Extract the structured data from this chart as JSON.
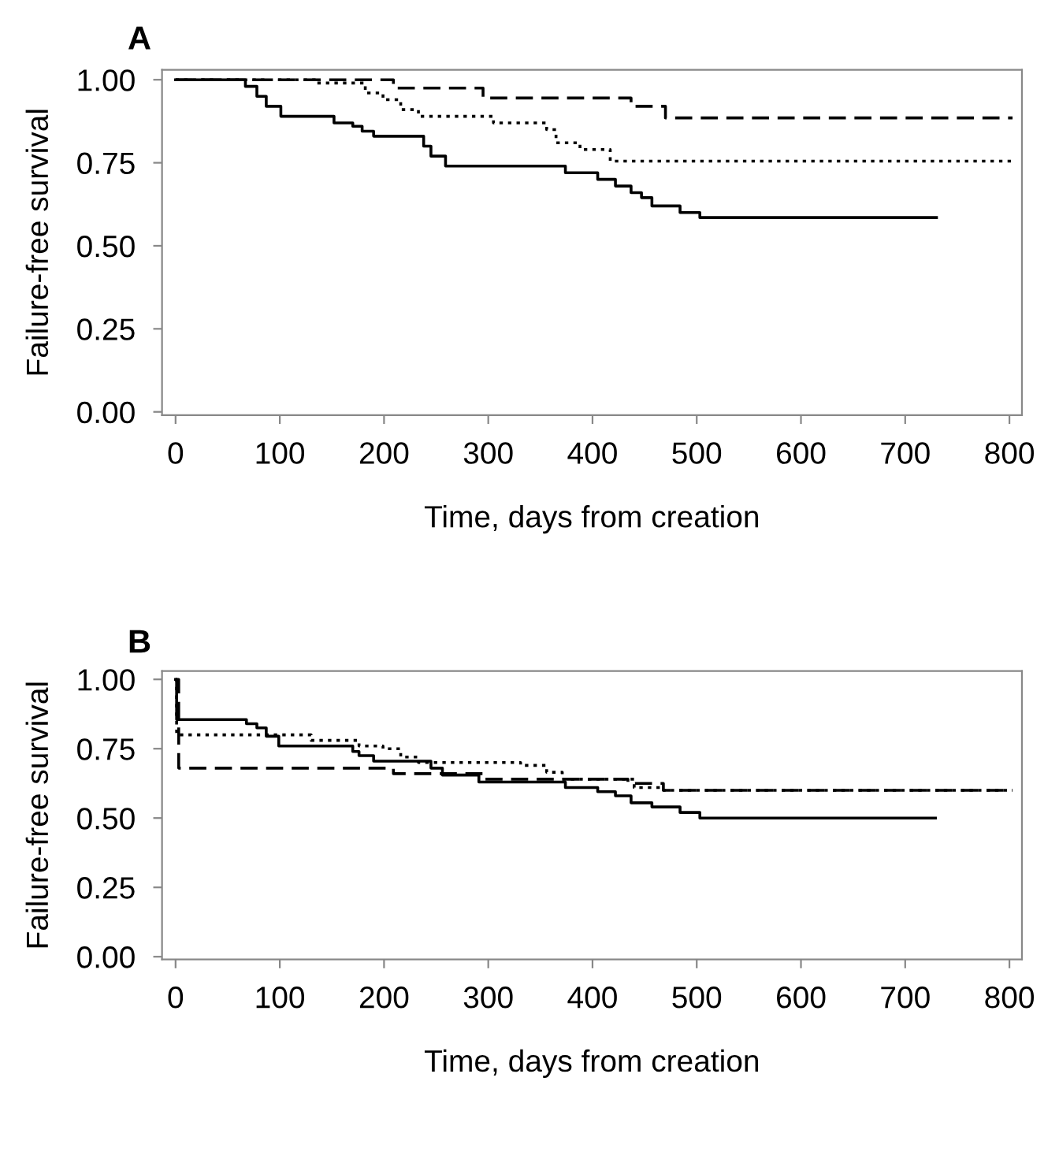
{
  "chart_data": [
    {
      "type": "step",
      "title": "A",
      "xlabel": "Time, days from creation",
      "ylabel": "Failure-free survival",
      "xlim": [
        -13,
        812
      ],
      "ylim": [
        -0.01,
        1.03
      ],
      "xticks": [
        0,
        100,
        200,
        300,
        400,
        500,
        600,
        700,
        800
      ],
      "yticks": [
        {
          "value": 0,
          "label": "0.00"
        },
        {
          "value": 0.25,
          "label": "0.25"
        },
        {
          "value": 0.5,
          "label": "0.50"
        },
        {
          "value": 0.75,
          "label": "0.75"
        },
        {
          "value": 1,
          "label": "1.00"
        }
      ],
      "grid": false,
      "legend": false,
      "series": [
        {
          "color": "#000000",
          "line_style": "solid",
          "x": [
            0,
            67,
            78,
            87,
            101,
            152,
            170,
            179,
            190,
            238,
            245,
            259,
            293,
            374,
            405,
            422,
            437,
            447,
            457,
            484,
            503,
            730
          ],
          "values": [
            1.0,
            0.98,
            0.95,
            0.92,
            0.89,
            0.87,
            0.86,
            0.845,
            0.83,
            0.8,
            0.77,
            0.74,
            0.74,
            0.72,
            0.7,
            0.68,
            0.66,
            0.645,
            0.62,
            0.6,
            0.585,
            0.585
          ]
        },
        {
          "color": "#000000",
          "line_style": "dotted",
          "x": [
            0,
            136,
            182,
            199,
            216,
            233,
            305,
            356,
            365,
            388,
            417,
            803
          ],
          "values": [
            1.0,
            0.99,
            0.96,
            0.94,
            0.91,
            0.89,
            0.87,
            0.85,
            0.81,
            0.79,
            0.755,
            0.755
          ]
        },
        {
          "color": "#000000",
          "line_style": "dashed",
          "x": [
            0,
            209,
            295,
            437,
            470,
            803
          ],
          "values": [
            1.0,
            0.975,
            0.945,
            0.92,
            0.885,
            0.885
          ]
        }
      ]
    },
    {
      "type": "step",
      "title": "B",
      "xlabel": "Time, days from creation",
      "ylabel": "Failure-free survival",
      "xlim": [
        -13,
        812
      ],
      "ylim": [
        -0.01,
        1.03
      ],
      "xticks": [
        0,
        100,
        200,
        300,
        400,
        500,
        600,
        700,
        800
      ],
      "yticks": [
        {
          "value": 0,
          "label": "0.00"
        },
        {
          "value": 0.25,
          "label": "0.25"
        },
        {
          "value": 0.5,
          "label": "0.50"
        },
        {
          "value": 0.75,
          "label": "0.75"
        },
        {
          "value": 1,
          "label": "1.00"
        }
      ],
      "grid": false,
      "legend": false,
      "series": [
        {
          "color": "#000000",
          "line_style": "solid",
          "x": [
            0,
            1,
            68,
            78,
            87,
            99,
            153,
            170,
            176,
            190,
            238,
            245,
            256,
            291,
            374,
            405,
            422,
            437,
            457,
            484,
            503,
            729
          ],
          "values": [
            1.0,
            0.855,
            0.84,
            0.825,
            0.795,
            0.76,
            0.76,
            0.74,
            0.725,
            0.705,
            0.705,
            0.68,
            0.655,
            0.63,
            0.61,
            0.595,
            0.58,
            0.555,
            0.54,
            0.52,
            0.5,
            0.5
          ]
        },
        {
          "color": "#000000",
          "line_style": "dotted",
          "x": [
            0,
            1,
            130,
            176,
            199,
            216,
            233,
            331,
            356,
            371,
            440,
            468,
            803
          ],
          "values": [
            1.0,
            0.8,
            0.78,
            0.76,
            0.75,
            0.72,
            0.7,
            0.69,
            0.665,
            0.64,
            0.61,
            0.6,
            0.6
          ]
        },
        {
          "color": "#000000",
          "line_style": "dashed",
          "x": [
            0,
            3,
            209,
            295,
            434,
            468,
            803
          ],
          "values": [
            1.0,
            0.68,
            0.66,
            0.64,
            0.625,
            0.6,
            0.6
          ]
        }
      ]
    }
  ]
}
